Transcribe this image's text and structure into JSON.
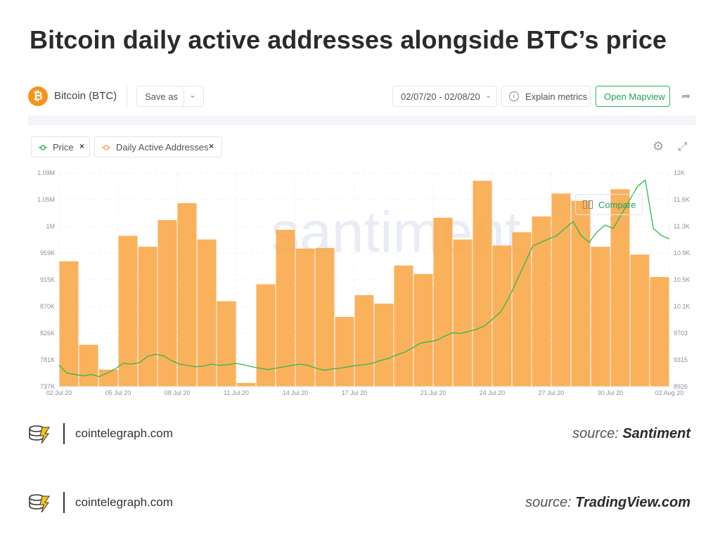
{
  "headline": "Bitcoin daily active addresses alongside BTC’s price",
  "toolbar": {
    "asset_logo": "₿",
    "asset_name": "Bitcoin (BTC)",
    "save_as": "Save as",
    "date_range": "02/07/20 - 02/08/20",
    "explain_metrics": "Explain metrics",
    "open_mapview": "Open Mapview"
  },
  "chips": {
    "price_label": "Price",
    "daa_label": "Daily Active Addresses",
    "close_glyph": "×"
  },
  "compare_label": "Compare",
  "colors": {
    "price": "#2fb84f",
    "daa": "#f9a84a",
    "accent": "#26b36a",
    "btc": "#f7931a"
  },
  "chart_data": {
    "type": "bar+line",
    "watermark": "santiment",
    "x_tick_labels": [
      "02 Jul 20",
      "05 Jul 20",
      "08 Jul 20",
      "11 Jul 20",
      "14 Jul 20",
      "17 Jul 20",
      "21 Jul 20",
      "24 Jul 20",
      "27 Jul 20",
      "30 Jul 20",
      "02 Aug 20"
    ],
    "left_axis": {
      "tick_labels": [
        "1.09M",
        "1.05M",
        "1M",
        "959K",
        "915K",
        "870K",
        "826K",
        "781K",
        "737K"
      ],
      "ylim": [
        737000,
        1090000
      ]
    },
    "right_axis": {
      "tick_labels": [
        "12K",
        "11.6K",
        "11.3K",
        "10.9K",
        "10.5K",
        "10.1K",
        "9703",
        "9315",
        "8926"
      ],
      "ylim": [
        8926,
        12000
      ]
    },
    "series": [
      {
        "name": "Daily Active Addresses",
        "type": "bar",
        "axis": "left",
        "values": [
          944000,
          806000,
          765000,
          986000,
          968000,
          1012000,
          1040000,
          980000,
          878000,
          743000,
          906000,
          996000,
          965000,
          966000,
          852000,
          888000,
          874000,
          937000,
          923000,
          1016000,
          980000,
          1077000,
          970000,
          992000,
          1018000,
          1056000,
          1044000,
          968000,
          1063000,
          955000,
          918000
        ]
      },
      {
        "name": "Price",
        "type": "line",
        "axis": "right",
        "values": [
          9230,
          9120,
          9100,
          9080,
          9100,
          9070,
          9120,
          9180,
          9260,
          9250,
          9270,
          9360,
          9390,
          9370,
          9300,
          9250,
          9230,
          9210,
          9220,
          9250,
          9230,
          9240,
          9260,
          9240,
          9210,
          9190,
          9170,
          9190,
          9210,
          9230,
          9250,
          9230,
          9190,
          9160,
          9180,
          9190,
          9210,
          9230,
          9240,
          9260,
          9300,
          9330,
          9380,
          9420,
          9480,
          9550,
          9570,
          9590,
          9650,
          9700,
          9690,
          9720,
          9750,
          9800,
          9900,
          10000,
          10200,
          10450,
          10700,
          10950,
          11000,
          11050,
          11100,
          11200,
          11300,
          11100,
          11000,
          11150,
          11250,
          11200,
          11400,
          11600,
          11800,
          11900,
          11200,
          11100,
          11050
        ]
      }
    ],
    "grid": true,
    "legend": "top-left"
  },
  "footers": [
    {
      "site": "cointelegraph.com",
      "source_prefix": "source: ",
      "source_name": "Santiment"
    },
    {
      "site": "cointelegraph.com",
      "source_prefix": "source: ",
      "source_name": "TradingView.com"
    }
  ]
}
